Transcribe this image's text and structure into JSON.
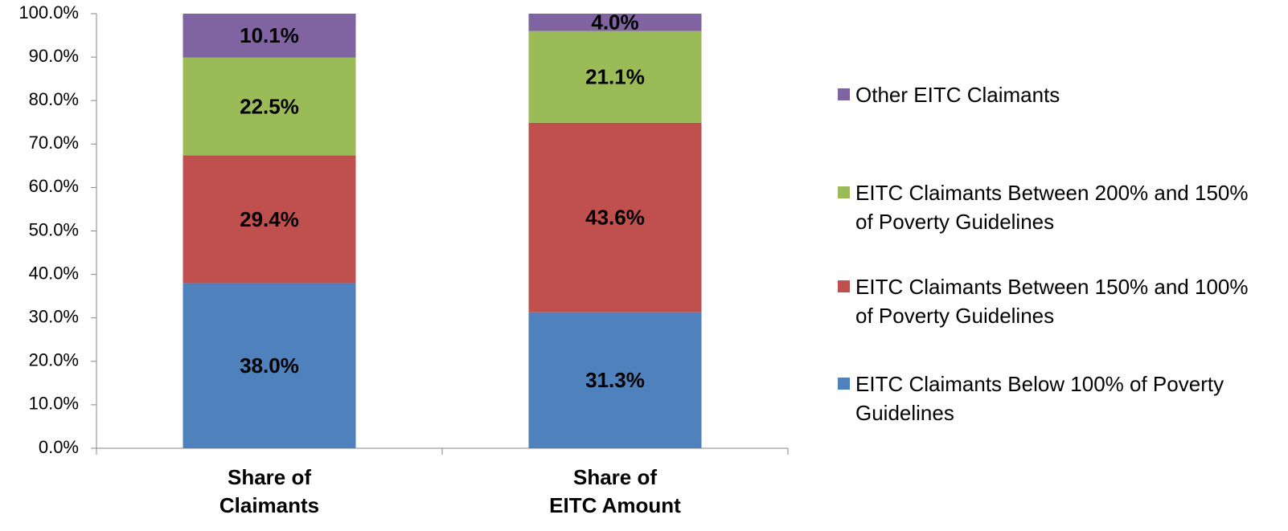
{
  "chart_data": {
    "type": "stacked_bar",
    "categories": [
      "Share of\nClaimants",
      "Share of\nEITC Amount"
    ],
    "series": [
      {
        "name": "EITC Claimants Below 100% of Poverty Guidelines",
        "color": "#4f81bd",
        "values": [
          38.0,
          31.3
        ],
        "value_labels": [
          "38.0%",
          "31.3%"
        ]
      },
      {
        "name": "EITC Claimants Between 150% and 100% of Poverty Guidelines",
        "color": "#c0504d",
        "values": [
          29.4,
          43.6
        ],
        "value_labels": [
          "29.4%",
          "43.6%"
        ]
      },
      {
        "name": "EITC Claimants Between 200% and 150% of Poverty Guidelines",
        "color": "#9bbb59",
        "values": [
          22.5,
          21.1
        ],
        "value_labels": [
          "22.5%",
          "21.1%"
        ]
      },
      {
        "name": "Other EITC Claimants",
        "color": "#8064a2",
        "values": [
          10.1,
          4.0
        ],
        "value_labels": [
          "10.1%",
          "4.0%"
        ]
      }
    ],
    "ylim": [
      0,
      100
    ],
    "yticks": [
      {
        "value": 0,
        "label": "0.0%"
      },
      {
        "value": 10,
        "label": "10.0%"
      },
      {
        "value": 20,
        "label": "20.0%"
      },
      {
        "value": 30,
        "label": "30.0%"
      },
      {
        "value": 40,
        "label": "40.0%"
      },
      {
        "value": 50,
        "label": "50.0%"
      },
      {
        "value": 60,
        "label": "60.0%"
      },
      {
        "value": 70,
        "label": "70.0%"
      },
      {
        "value": 80,
        "label": "80.0%"
      },
      {
        "value": 90,
        "label": "90.0%"
      },
      {
        "value": 100,
        "label": "100.0%"
      }
    ],
    "legend": "right"
  }
}
